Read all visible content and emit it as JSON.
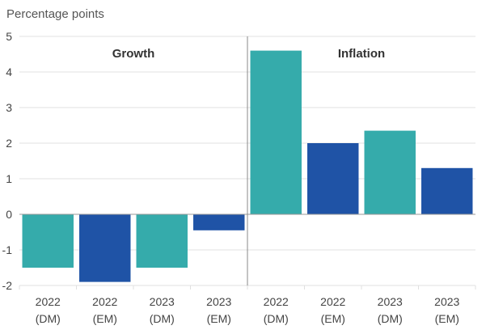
{
  "chart_data": {
    "type": "bar",
    "ylabel": "Percentage points",
    "ylim": [
      -2,
      5
    ],
    "yticks": [
      -2,
      -1,
      0,
      1,
      2,
      3,
      4,
      5
    ],
    "grid": true,
    "panels": [
      {
        "title": "Growth",
        "categories": [
          {
            "year": "2022",
            "group": "(DM)"
          },
          {
            "year": "2022",
            "group": "(EM)"
          },
          {
            "year": "2023",
            "group": "(DM)"
          },
          {
            "year": "2023",
            "group": "(EM)"
          }
        ],
        "values": [
          -1.5,
          -1.9,
          -1.5,
          -0.45
        ]
      },
      {
        "title": "Inflation",
        "categories": [
          {
            "year": "2022",
            "group": "(DM)"
          },
          {
            "year": "2022",
            "group": "(EM)"
          },
          {
            "year": "2023",
            "group": "(DM)"
          },
          {
            "year": "2023",
            "group": "(EM)"
          }
        ],
        "values": [
          4.6,
          2.0,
          2.35,
          1.3
        ]
      }
    ],
    "colors": {
      "DM": "#35abab",
      "EM": "#1f53a6",
      "grid": "#e0e0e0",
      "zero_line": "#999999",
      "divider": "#888888"
    }
  }
}
